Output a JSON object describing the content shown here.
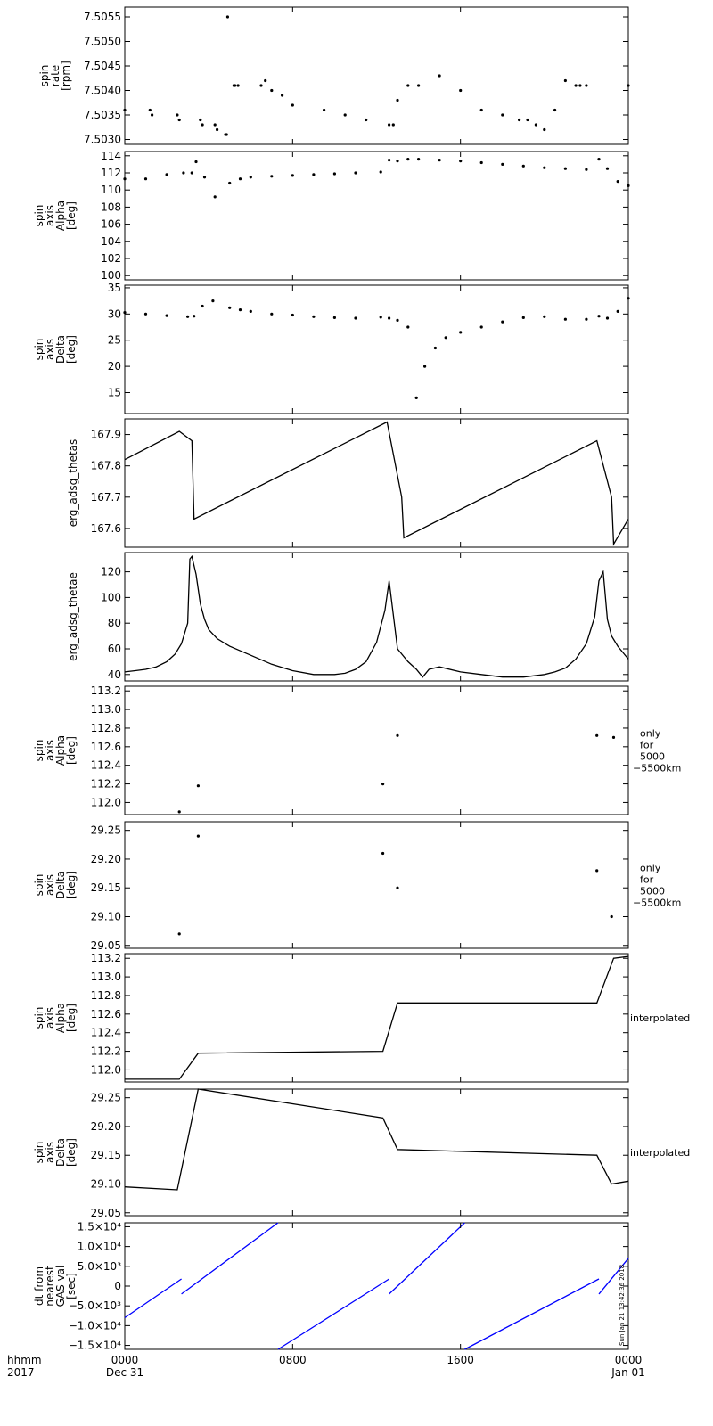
{
  "chart_data": [
    {
      "type": "scatter",
      "ylabel_lines": [
        "spin",
        "rate",
        "[rpm]"
      ],
      "ylim": [
        7.5029,
        7.5057
      ],
      "yticks": [
        "7.5030",
        "7.5035",
        "7.5040",
        "7.5045",
        "7.5050",
        "7.5055"
      ],
      "series": [
        {
          "x": [
            0,
            1.2,
            1.3,
            2.5,
            2.6,
            3.6,
            3.7,
            4.3,
            4.4,
            4.8,
            4.85,
            4.9,
            5.2,
            5.25,
            5.4,
            6.5,
            6.7,
            7,
            7.5,
            8,
            9.5,
            10.5,
            11.5,
            12.6,
            12.8,
            13,
            13.5,
            14,
            15,
            16,
            17,
            18,
            18.8,
            19.2,
            19.6,
            20,
            20.5,
            21,
            21.5,
            21.7,
            22,
            24
          ],
          "y": [
            7.5036,
            7.5036,
            7.5035,
            7.5035,
            7.5034,
            7.5034,
            7.5033,
            7.5033,
            7.5032,
            7.5031,
            7.5031,
            7.5055,
            7.5041,
            7.5041,
            7.5041,
            7.5041,
            7.5042,
            7.504,
            7.5039,
            7.5037,
            7.5036,
            7.5035,
            7.5034,
            7.5033,
            7.5033,
            7.5038,
            7.5041,
            7.5041,
            7.5043,
            7.504,
            7.5036,
            7.5035,
            7.5034,
            7.5034,
            7.5033,
            7.5032,
            7.5036,
            7.5042,
            7.5041,
            7.5041,
            7.5041,
            7.5041
          ]
        }
      ]
    },
    {
      "type": "scatter",
      "ylabel_lines": [
        "spin",
        "axis",
        "Alpha",
        "[deg]"
      ],
      "ylim": [
        99.5,
        114.5
      ],
      "yticks": [
        "100",
        "102",
        "104",
        "106",
        "108",
        "110",
        "112",
        "114"
      ],
      "series": [
        {
          "x": [
            0,
            1,
            2,
            2.8,
            3.2,
            3.4,
            3.8,
            4.3,
            5,
            5.5,
            6,
            7,
            8,
            9,
            10,
            11,
            12.2,
            12.6,
            13,
            13.5,
            14,
            15,
            16,
            17,
            18,
            19,
            20,
            21,
            22,
            22.6,
            23,
            23.5,
            24
          ],
          "y": [
            111.3,
            111.3,
            111.8,
            112,
            112,
            113.3,
            111.5,
            109.2,
            110.8,
            111.3,
            111.5,
            111.6,
            111.7,
            111.8,
            111.9,
            112,
            112.1,
            113.5,
            113.4,
            113.6,
            113.6,
            113.5,
            113.4,
            113.2,
            113,
            112.8,
            112.6,
            112.5,
            112.4,
            113.6,
            112.5,
            111,
            110.5
          ]
        }
      ]
    },
    {
      "type": "scatter",
      "ylabel_lines": [
        "spin",
        "axis",
        "Delta",
        "[deg]"
      ],
      "ylim": [
        11,
        35.5
      ],
      "yticks": [
        "15",
        "20",
        "25",
        "30",
        "35"
      ],
      "series": [
        {
          "x": [
            0,
            1,
            2,
            3,
            3.3,
            3.7,
            4.2,
            5,
            5.5,
            6,
            7,
            8,
            9,
            10,
            11,
            12.2,
            12.6,
            13,
            13.5,
            13.9,
            14.3,
            14.8,
            15.3,
            16,
            17,
            18,
            19,
            20,
            21,
            22,
            22.6,
            23,
            23.5,
            24
          ],
          "y": [
            30.3,
            30,
            29.7,
            29.5,
            29.6,
            31.5,
            32.5,
            31.2,
            30.8,
            30.5,
            30,
            29.8,
            29.5,
            29.3,
            29.2,
            29.4,
            29.2,
            28.8,
            27.5,
            14,
            20,
            23.5,
            25.5,
            26.5,
            27.5,
            28.5,
            29.3,
            29.5,
            29,
            29,
            29.6,
            29.2,
            30.5,
            33
          ]
        }
      ]
    },
    {
      "type": "line",
      "ylabel_lines": [
        "erg_adsg_thetas"
      ],
      "ylim": [
        167.54,
        167.95
      ],
      "yticks": [
        "167.6",
        "167.7",
        "167.8",
        "167.9"
      ],
      "series": [
        {
          "x": [
            0,
            2.6,
            3.2,
            3.3,
            12.5,
            13.2,
            13.3,
            22.5,
            23.2,
            23.3,
            24
          ],
          "y": [
            167.82,
            167.91,
            167.88,
            167.63,
            167.94,
            167.7,
            167.57,
            167.88,
            167.7,
            167.55,
            167.63
          ]
        }
      ]
    },
    {
      "type": "line",
      "ylabel_lines": [
        "erg_adsg_thetae"
      ],
      "ylim": [
        35,
        135
      ],
      "yticks": [
        "40",
        "60",
        "80",
        "100",
        "120"
      ],
      "series": [
        {
          "x": [
            0,
            0.5,
            1,
            1.5,
            2,
            2.4,
            2.7,
            3,
            3.1,
            3.2,
            3.4,
            3.6,
            3.8,
            4,
            4.4,
            5,
            6,
            7,
            8,
            9,
            10,
            10.5,
            11,
            11.5,
            12,
            12.4,
            12.6,
            13,
            13.5,
            13.9,
            14.2,
            14.5,
            15,
            16,
            17,
            18,
            19,
            20,
            20.5,
            21,
            21.5,
            22,
            22.4,
            22.6,
            22.8,
            23,
            23.2,
            23.5,
            24
          ],
          "y": [
            42,
            43,
            44,
            46,
            50,
            56,
            64,
            80,
            130,
            132,
            118,
            95,
            83,
            75,
            68,
            62,
            55,
            48,
            43,
            40,
            40,
            41,
            44,
            50,
            65,
            90,
            113,
            60,
            50,
            44,
            38,
            44,
            46,
            42,
            40,
            38,
            38,
            40,
            42,
            45,
            52,
            64,
            85,
            113,
            120,
            83,
            70,
            62,
            52
          ]
        }
      ]
    },
    {
      "type": "scatter",
      "ylabel_lines": [
        "spin",
        "axis",
        "Alpha",
        "[deg]"
      ],
      "ylim": [
        111.87,
        113.25
      ],
      "yticks": [
        "112.0",
        "112.2",
        "112.4",
        "112.6",
        "112.8",
        "113.0",
        "113.2"
      ],
      "side_label_lines": [
        "only",
        "for",
        "5000",
        "−5500km"
      ],
      "series": [
        {
          "x": [
            2.6,
            3.5,
            12.3,
            13,
            22.5,
            23.3
          ],
          "y": [
            111.9,
            112.18,
            112.2,
            112.72,
            112.72,
            112.7
          ]
        }
      ]
    },
    {
      "type": "scatter",
      "ylabel_lines": [
        "spin",
        "axis",
        "Delta",
        "[deg]"
      ],
      "ylim": [
        29.045,
        29.265
      ],
      "yticks": [
        "29.05",
        "29.10",
        "29.15",
        "29.20",
        "29.25"
      ],
      "side_label_lines": [
        "only",
        "for",
        "5000",
        "−5500km"
      ],
      "series": [
        {
          "x": [
            2.6,
            3.5,
            12.3,
            13,
            22.5,
            23.2
          ],
          "y": [
            29.07,
            29.24,
            29.21,
            29.15,
            29.18,
            29.1
          ]
        }
      ]
    },
    {
      "type": "line",
      "ylabel_lines": [
        "spin",
        "axis",
        "Alpha",
        "[deg]"
      ],
      "ylim": [
        111.87,
        113.25
      ],
      "yticks": [
        "112.0",
        "112.2",
        "112.4",
        "112.6",
        "112.8",
        "113.0",
        "113.2"
      ],
      "side_label_lines": [
        "interpolated"
      ],
      "series": [
        {
          "x": [
            0,
            2.6,
            3.5,
            12.3,
            13,
            22.5,
            23.3,
            24
          ],
          "y": [
            111.9,
            111.9,
            112.18,
            112.2,
            112.72,
            112.72,
            113.2,
            113.22
          ]
        }
      ]
    },
    {
      "type": "line",
      "ylabel_lines": [
        "spin",
        "axis",
        "Delta",
        "[deg]"
      ],
      "ylim": [
        29.045,
        29.265
      ],
      "yticks": [
        "29.05",
        "29.10",
        "29.15",
        "29.20",
        "29.25"
      ],
      "side_label_lines": [
        "interpolated"
      ],
      "series": [
        {
          "x": [
            0,
            2.5,
            3.5,
            12.3,
            13,
            22.5,
            23.2,
            24
          ],
          "y": [
            29.095,
            29.09,
            29.265,
            29.215,
            29.16,
            29.15,
            29.1,
            29.105
          ]
        }
      ]
    },
    {
      "type": "line",
      "ylabel_lines": [
        "dt from",
        "nearest",
        "GAS val",
        "[sec]"
      ],
      "ylim": [
        -16000,
        16000
      ],
      "yticks": [
        "−1.5×10⁴",
        "−1.0×10⁴",
        "−5.0×10³",
        "0",
        "5.0×10³",
        "1.0×10⁴",
        "1.5×10⁴"
      ],
      "ytick_values": [
        -15000,
        -10000,
        -5000,
        0,
        5000,
        10000,
        15000
      ],
      "line_color": "#0000ff",
      "timestamp": "Sun Jan 21 13:42:36 2018",
      "segments": [
        {
          "x": [
            0,
            2.7
          ],
          "y": [
            -8000,
            1800
          ]
        },
        {
          "x": [
            2.7,
            7.3
          ],
          "y": [
            -2000,
            16000
          ]
        },
        {
          "x": [
            7.3,
            12.6
          ],
          "y": [
            -16000,
            1800
          ]
        },
        {
          "x": [
            12.6,
            16.2
          ],
          "y": [
            -2000,
            16000
          ]
        },
        {
          "x": [
            16.2,
            22.6
          ],
          "y": [
            -16000,
            1800
          ]
        },
        {
          "x": [
            22.6,
            24
          ],
          "y": [
            -2000,
            7000
          ]
        }
      ]
    }
  ],
  "xaxis": {
    "xlim": [
      0,
      24
    ],
    "ticks": [
      {
        "x": 0,
        "top": "0000",
        "bottom": "Dec 31"
      },
      {
        "x": 8,
        "top": "0800",
        "bottom": ""
      },
      {
        "x": 16,
        "top": "1600",
        "bottom": ""
      },
      {
        "x": 24,
        "top": "0000",
        "bottom": "Jan 01"
      }
    ],
    "label_top": "hhmm",
    "label_bottom": "2017"
  }
}
